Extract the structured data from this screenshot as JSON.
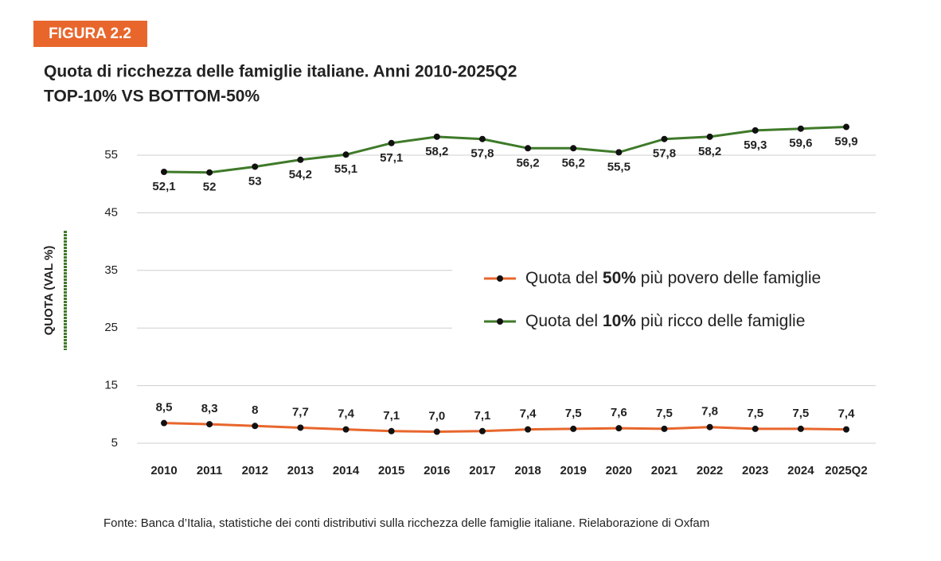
{
  "badge": "FIGURA 2.2",
  "chart_data": {
    "type": "line",
    "title": "Quota di ricchezza delle famiglie italiane. Anni 2010-2025Q2",
    "subtitle": "TOP-10% VS BOTTOM-50%",
    "y_label": "QUOTA (VAL %)",
    "categories": [
      "2010",
      "2011",
      "2012",
      "2013",
      "2014",
      "2015",
      "2016",
      "2017",
      "2018",
      "2019",
      "2020",
      "2021",
      "2022",
      "2023",
      "2024",
      "2025Q2"
    ],
    "series": [
      {
        "name": "Quota del 50% più povero delle famiglie",
        "color": "#e8662c",
        "values": [
          8.5,
          8.3,
          8,
          7.7,
          7.4,
          7.1,
          7.0,
          7.1,
          7.4,
          7.5,
          7.6,
          7.5,
          7.8,
          7.5,
          7.5,
          7.4
        ],
        "value_labels": [
          "8,5",
          "8,3",
          "8",
          "7,7",
          "7,4",
          "7,1",
          "7,0",
          "7,1",
          "7,4",
          "7,5",
          "7,6",
          "7,5",
          "7,8",
          "7,5",
          "7,5",
          "7,4"
        ]
      },
      {
        "name": "Quota del 10% più ricco delle famiglie",
        "color": "#3f7a2a",
        "values": [
          52.1,
          52,
          53,
          54.2,
          55.1,
          57.1,
          58.2,
          57.8,
          56.2,
          56.2,
          55.5,
          57.8,
          58.2,
          59.3,
          59.6,
          59.9
        ],
        "value_labels": [
          "52,1",
          "52",
          "53",
          "54,2",
          "55,1",
          "57,1",
          "58,2",
          "57,8",
          "56,2",
          "56,2",
          "55,5",
          "57,8",
          "58,2",
          "59,3",
          "59,6",
          "59,9"
        ]
      }
    ],
    "ylim": [
      5,
      62
    ],
    "yticks": [
      5,
      15,
      25,
      35,
      45,
      55
    ],
    "grid": true,
    "legend": "center-right",
    "source": "Fonte: Banca d’Italia, statistiche dei conti distributivi sulla ricchezza delle famiglie italiane. Rielaborazione di Oxfam"
  }
}
